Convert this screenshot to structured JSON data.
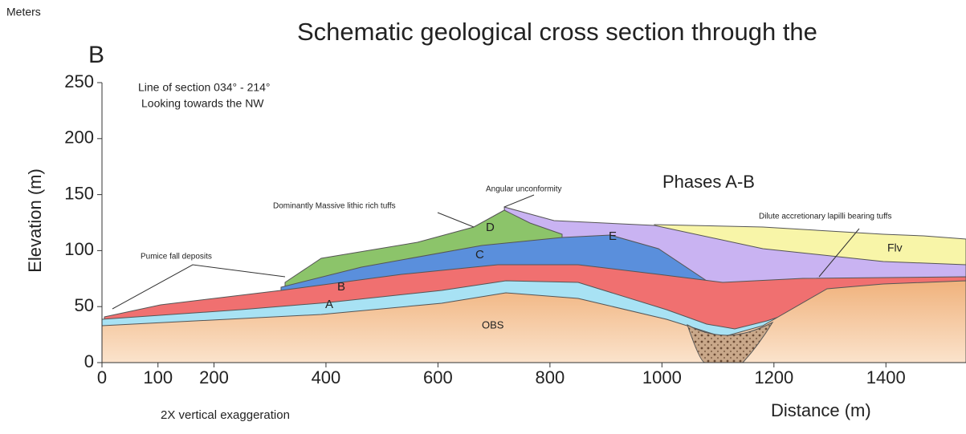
{
  "header": {
    "units": "Meters",
    "panel": "B",
    "title": "Schematic geological cross section through the"
  },
  "notes": {
    "section_line": "Line of section 034° - 214°",
    "view": "Looking towards the NW",
    "exaggeration": "2X vertical exaggeration",
    "phases": "Phases A-B"
  },
  "axes": {
    "x_label": "Distance (m)",
    "y_label": "Elevation (m)",
    "xlim": [
      0,
      1543
    ],
    "ylim": [
      0,
      250
    ],
    "xticks": [
      0,
      100,
      200,
      400,
      600,
      800,
      1000,
      1200,
      1400
    ],
    "yticks": [
      0,
      50,
      100,
      150,
      200,
      250
    ]
  },
  "annotations": {
    "unconformity": "Angular unconformity",
    "massive": "Dominantly Massive lithic rich tuffs",
    "pumice": "Pumice fall deposits",
    "dilute": "Dilute accretionary lapilli bearing tuffs"
  },
  "layers": {
    "a": "A",
    "b": "B",
    "c": "C",
    "d": "D",
    "e": "E",
    "flv": "Flv",
    "obs": "OBS"
  }
}
